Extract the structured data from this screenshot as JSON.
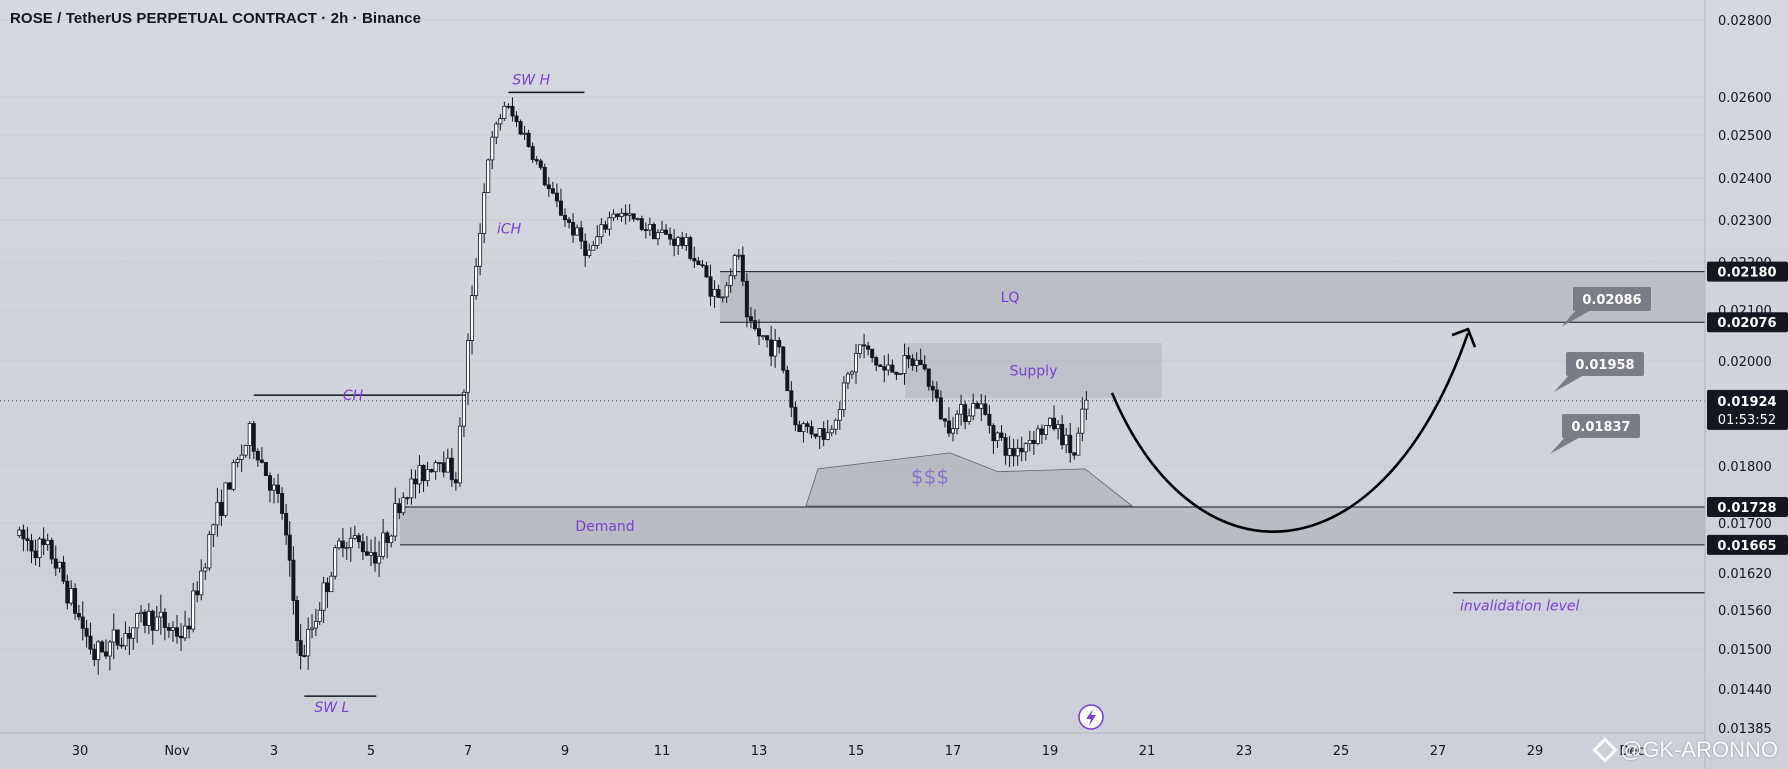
{
  "header": {
    "title": "ROSE / TetherUS PERPETUAL CONTRACT · 2h · Binance"
  },
  "watermark": {
    "text": "@GK-ARONNO"
  },
  "colors": {
    "background": "#d1d4dc",
    "candle": "#131722",
    "zone_fill": "#a9abb3",
    "annotation_text": "#7b3fd1",
    "price_tag": "#131722",
    "callout": "#7a7d86"
  },
  "icons": {
    "lightning": "lightning-icon",
    "watermark_logo": "binance-logo-icon"
  },
  "chart_data": {
    "type": "candlestick",
    "symbol": "ROSE / TetherUS PERPETUAL CONTRACT",
    "interval": "2h",
    "exchange": "Binance",
    "x_tick_labels": [
      "30",
      "Nov",
      "3",
      "5",
      "7",
      "9",
      "11",
      "13",
      "15",
      "17",
      "19",
      "21",
      "23",
      "25",
      "27",
      "29",
      "Dec"
    ],
    "y_tick_labels": [
      "0.02800",
      "0.02600",
      "0.02500",
      "0.02400",
      "0.02300",
      "0.02200",
      "0.02100",
      "0.02000",
      "0.01800",
      "0.01700",
      "0.01620",
      "0.01560",
      "0.01500",
      "0.01440",
      "0.01385"
    ],
    "ylim": [
      0.01385,
      0.0285
    ],
    "current_price": {
      "value": "0.01924",
      "countdown": "01:53:52"
    },
    "price_tags": [
      "0.02180",
      "0.02076",
      "0.01728",
      "0.01665"
    ],
    "callouts": [
      "0.02086",
      "0.01958",
      "0.01837"
    ],
    "zones": [
      {
        "label": "LQ",
        "top": 0.0218,
        "bottom": 0.02076
      },
      {
        "label": "Supply",
        "top": 0.02035,
        "bottom": 0.0193
      },
      {
        "label": "Demand",
        "top": 0.01728,
        "bottom": 0.01665
      },
      {
        "label": "$$$",
        "top": 0.01845,
        "bottom": 0.0173
      }
    ],
    "annotations": [
      "SW H",
      "SW L",
      "CH",
      "iCH",
      "invalidation level"
    ],
    "series_anchors": [
      [
        "Oct 28 18:00",
        0.0168
      ],
      [
        "Oct 29 12:00",
        0.0165
      ],
      [
        "Oct 30 09:00",
        0.0149
      ],
      [
        "Oct 31 12:00",
        0.0155
      ],
      [
        "Nov 1 06:00",
        0.0152
      ],
      [
        "Nov 1 20:00",
        0.017
      ],
      [
        "Nov 2 14:00",
        0.0186
      ],
      [
        "Nov 3 06:00",
        0.0172
      ],
      [
        "Nov 3 15:00",
        0.0148
      ],
      [
        "Nov 4 12:00",
        0.0168
      ],
      [
        "Nov 5 06:00",
        0.0165
      ],
      [
        "Nov 5 18:00",
        0.0175
      ],
      [
        "Nov 6 12:00",
        0.0182
      ],
      [
        "Nov 6 20:00",
        0.0178
      ],
      [
        "Nov 7 06:00",
        0.022
      ],
      [
        "Nov 7 12:00",
        0.0245
      ],
      [
        "Nov 7 20:00",
        0.0258
      ],
      [
        "Nov 8 06:00",
        0.025
      ],
      [
        "Nov 8 20:00",
        0.0235
      ],
      [
        "Nov 9 14:00",
        0.0222
      ],
      [
        "Nov 10 02:00",
        0.0232
      ],
      [
        "Nov 10 20:00",
        0.0228
      ],
      [
        "Nov 11 14:00",
        0.0224
      ],
      [
        "Nov 12 06:00",
        0.0212
      ],
      [
        "Nov 12 16:00",
        0.0222
      ],
      [
        "Nov 12 20:00",
        0.0207
      ],
      [
        "Nov 13 12:00",
        0.0202
      ],
      [
        "Nov 13 20:00",
        0.0188
      ],
      [
        "Nov 14 12:00",
        0.0186
      ],
      [
        "Nov 15 04:00",
        0.0203
      ],
      [
        "Nov 15 16:00",
        0.0198
      ],
      [
        "Nov 16 10:00",
        0.02
      ],
      [
        "Nov 16 22:00",
        0.0188
      ],
      [
        "Nov 17 14:00",
        0.0192
      ],
      [
        "Nov 18 06:00",
        0.0182
      ],
      [
        "Nov 18 18:00",
        0.0186
      ],
      [
        "Nov 19 04:00",
        0.0188
      ],
      [
        "Nov 19 14:00",
        0.0182
      ],
      [
        "Nov 19 20:00",
        0.01924
      ]
    ],
    "projection": {
      "from": 0.01924,
      "low": 0.0169,
      "to": 0.02086
    }
  }
}
